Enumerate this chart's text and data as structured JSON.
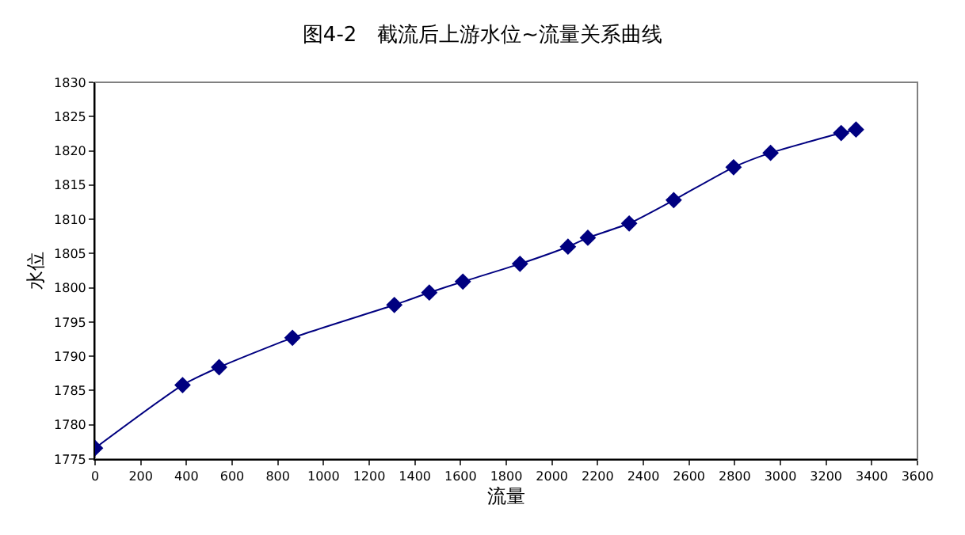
{
  "chart_data": {
    "type": "line",
    "title": "图4-2　截流后上游水位~流量关系曲线",
    "xlabel": "流量",
    "ylabel": "水位",
    "x": [
      0,
      383,
      543,
      864,
      1310,
      1463,
      1610,
      1860,
      2070,
      2157,
      2338,
      2533,
      2795,
      2957,
      3266,
      3331
    ],
    "series": [
      {
        "color": "#000080",
        "values": [
          1776.6,
          1785.8,
          1788.4,
          1792.7,
          1797.5,
          1799.3,
          1800.9,
          1803.5,
          1806.0,
          1807.3,
          1809.4,
          1812.8,
          1817.6,
          1819.7,
          1822.6,
          1823.1
        ]
      }
    ],
    "xlim": [
      0,
      3600
    ],
    "xticks": [
      0,
      200,
      400,
      600,
      800,
      1000,
      1200,
      1400,
      1600,
      1800,
      2000,
      2200,
      2400,
      2600,
      2800,
      3000,
      3200,
      3400,
      3600
    ],
    "ylim": [
      1775,
      1830
    ],
    "yticks": [
      1775,
      1780,
      1785,
      1790,
      1795,
      1800,
      1805,
      1810,
      1815,
      1820,
      1825,
      1830
    ],
    "grid": false,
    "legend": false,
    "marker": "diamond",
    "line_style": "solid"
  }
}
